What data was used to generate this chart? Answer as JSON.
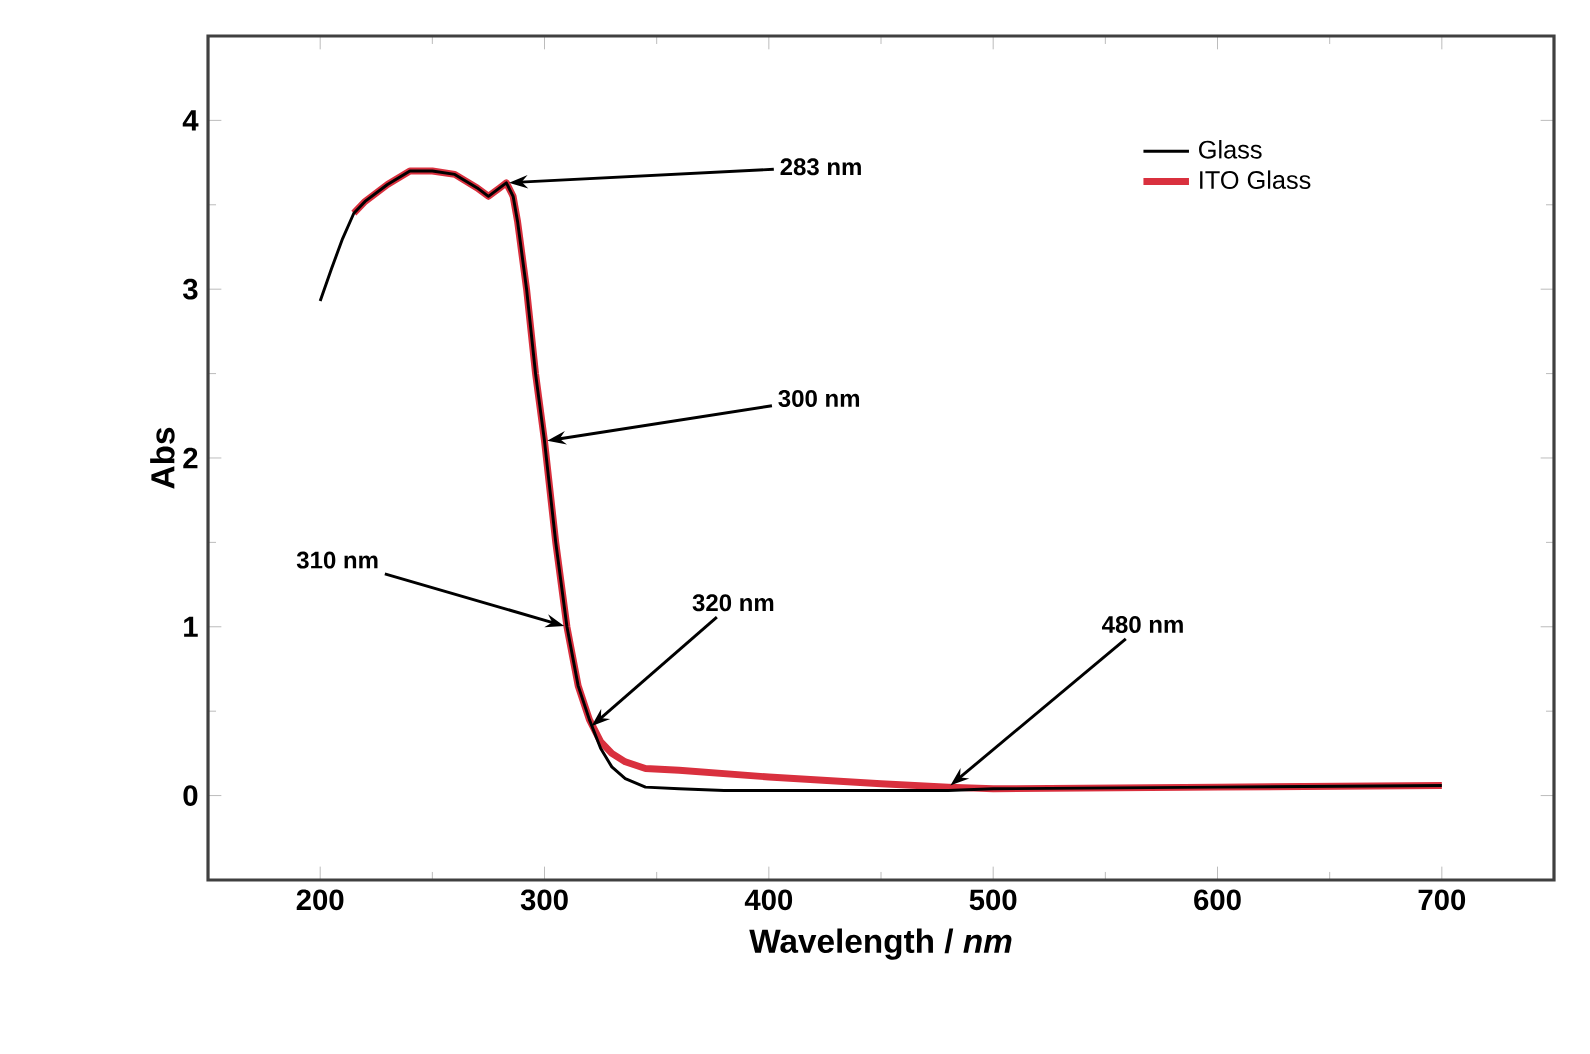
{
  "chart_data": {
    "type": "line",
    "xlabel": "Wavelength / *nm*",
    "ylabel": "Abs",
    "xlim": [
      150,
      750
    ],
    "ylim": [
      -0.5,
      4.5
    ],
    "xticks": [
      200,
      300,
      400,
      500,
      600,
      700
    ],
    "yticks": [
      0,
      1,
      2,
      3,
      4
    ],
    "x": [
      200,
      205,
      210,
      215,
      220,
      230,
      240,
      250,
      260,
      270,
      275,
      280,
      283,
      286,
      288,
      292,
      296,
      300,
      305,
      310,
      315,
      320,
      325,
      330,
      336,
      345,
      360,
      380,
      400,
      450,
      480,
      500,
      600,
      700
    ],
    "series": [
      {
        "name": "Glass",
        "color": "#000000",
        "values": [
          2.93,
          3.12,
          3.3,
          3.45,
          3.52,
          3.62,
          3.7,
          3.7,
          3.68,
          3.6,
          3.55,
          3.6,
          3.63,
          3.55,
          3.4,
          3.0,
          2.5,
          2.1,
          1.5,
          1.0,
          0.65,
          0.45,
          0.28,
          0.17,
          0.1,
          0.05,
          0.04,
          0.03,
          0.03,
          0.03,
          0.03,
          0.04,
          0.05,
          0.06
        ]
      },
      {
        "name": "ITO Glass",
        "color": "#d9303e",
        "values": [
          null,
          null,
          null,
          3.45,
          3.52,
          3.62,
          3.7,
          3.7,
          3.68,
          3.6,
          3.55,
          3.6,
          3.63,
          3.55,
          3.4,
          3.0,
          2.5,
          2.1,
          1.5,
          1.0,
          0.65,
          0.45,
          0.32,
          0.25,
          0.2,
          0.16,
          0.15,
          0.13,
          0.11,
          0.07,
          0.05,
          0.04,
          0.05,
          0.06
        ]
      }
    ],
    "annotations": [
      {
        "text": "283 nm",
        "x": 283,
        "y": 3.63
      },
      {
        "text": "300 nm",
        "x": 300,
        "y": 2.1
      },
      {
        "text": "310 nm",
        "x": 310,
        "y": 1.0
      },
      {
        "text": "320 nm",
        "x": 320,
        "y": 0.4
      },
      {
        "text": "480 nm",
        "x": 480,
        "y": 0.05
      }
    ],
    "legend": "top right",
    "grid": false,
    "line_style": "solid",
    "marker": "none"
  }
}
